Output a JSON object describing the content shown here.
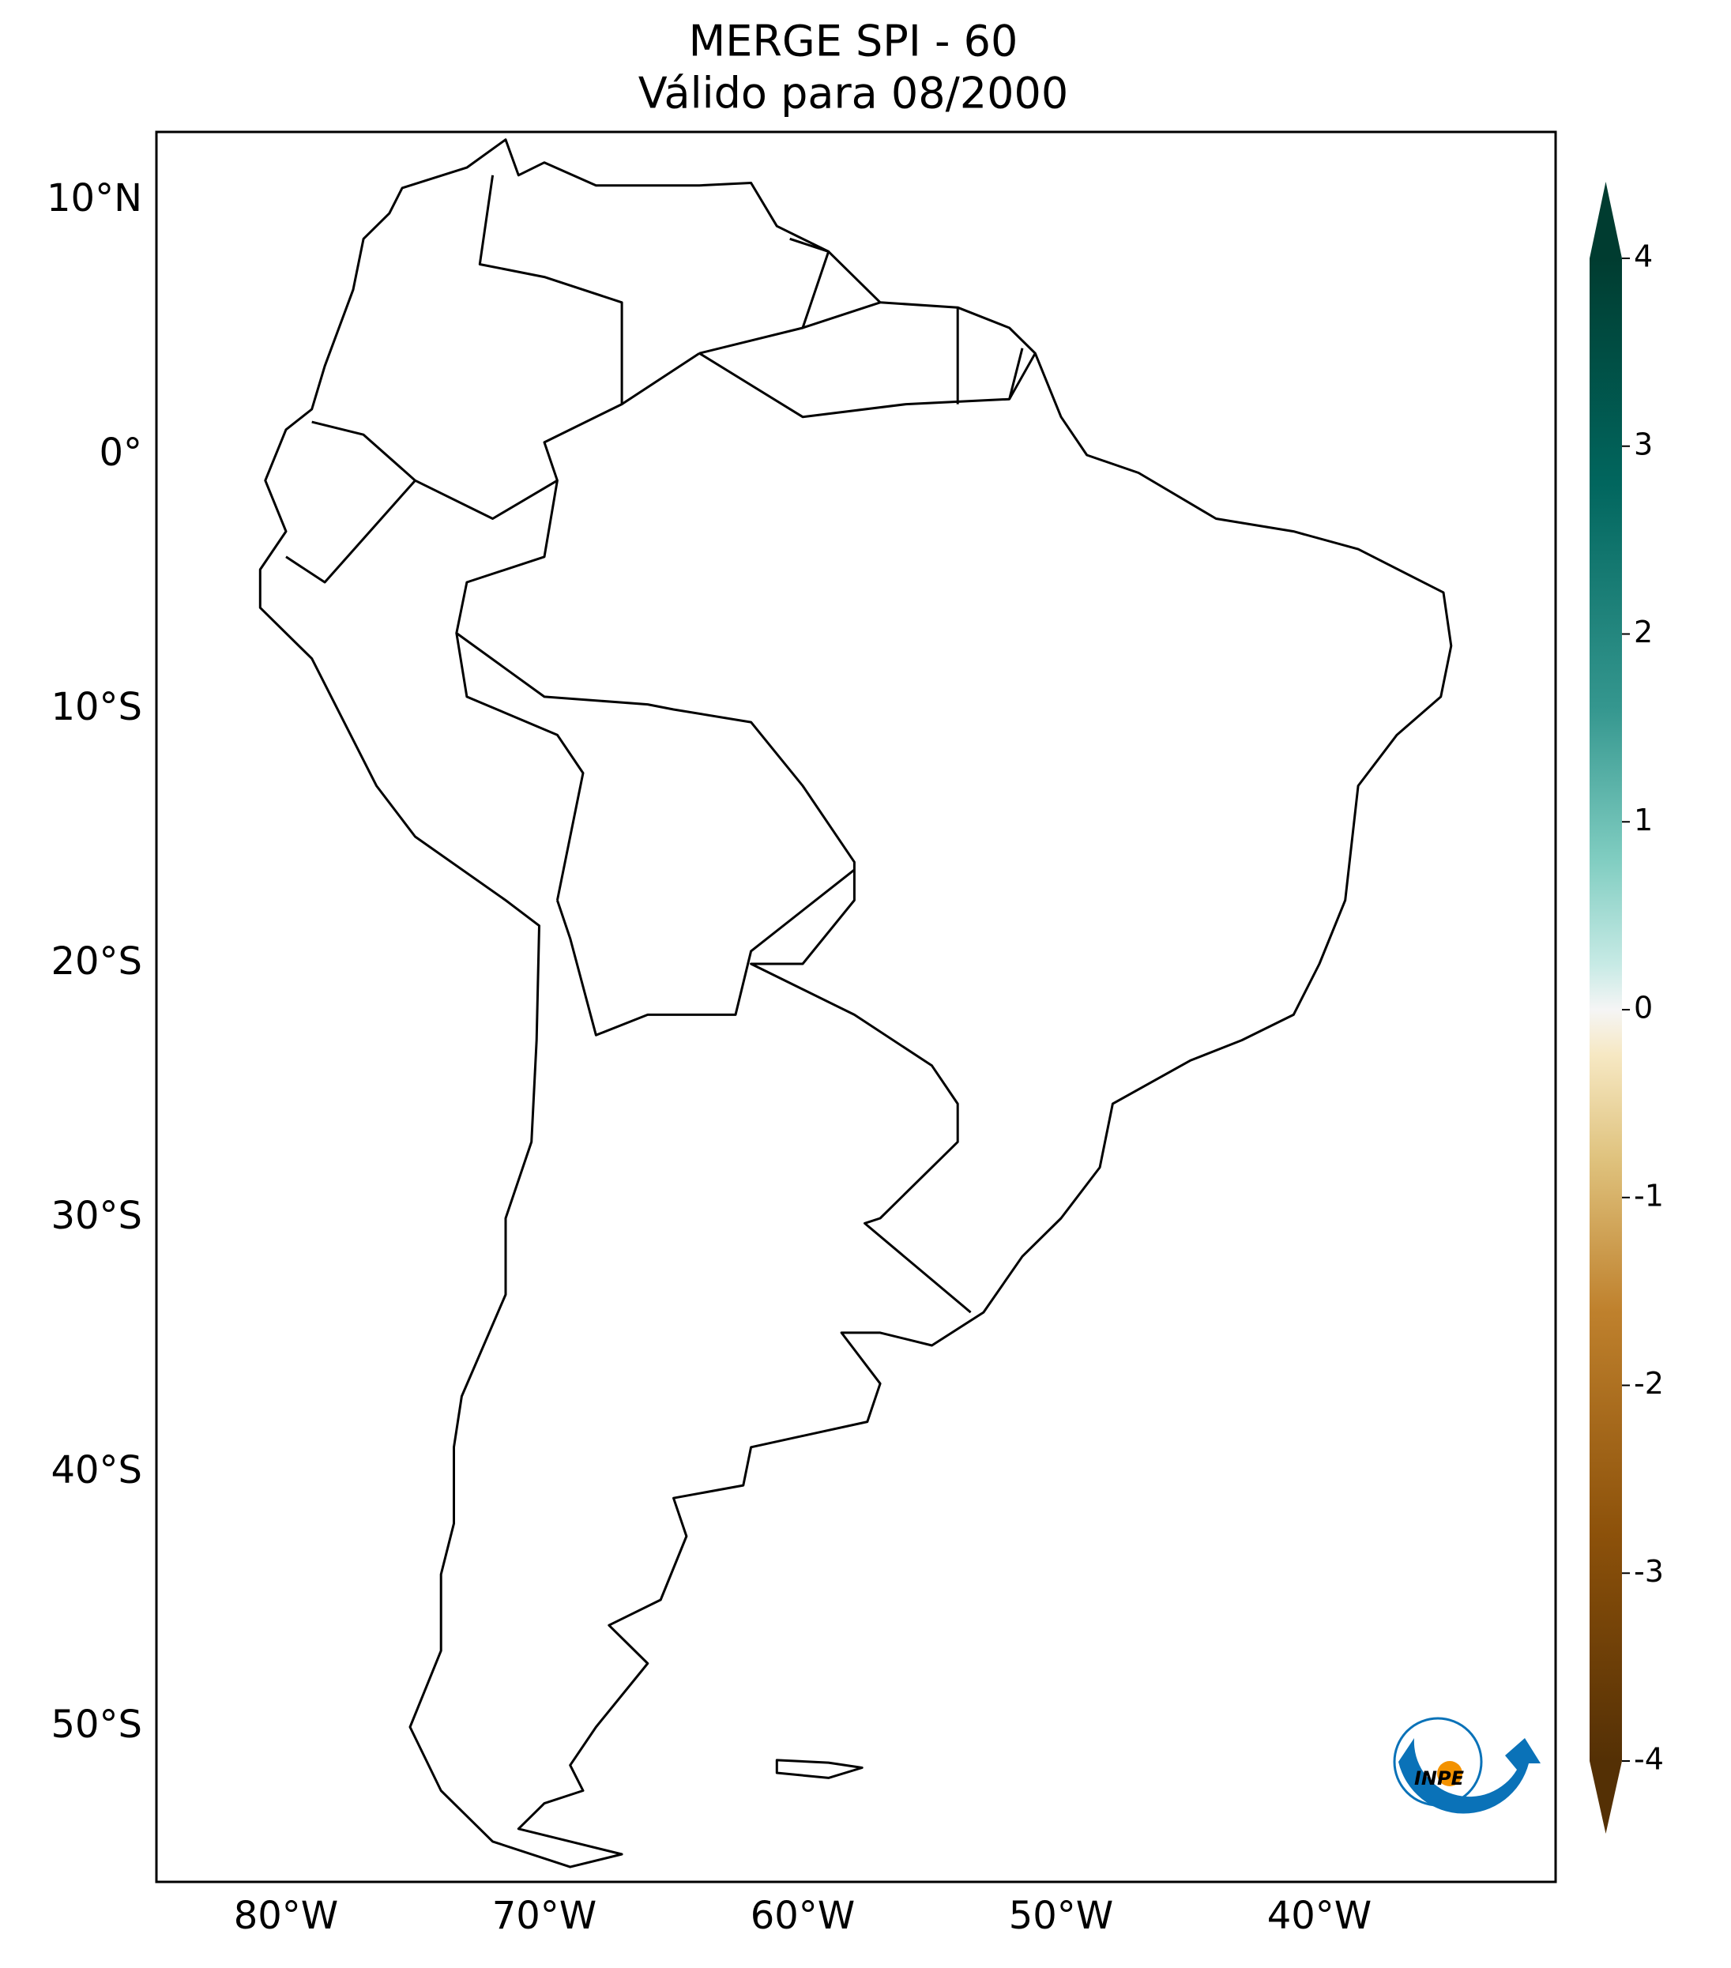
{
  "title": "MERGE   SPI - 60",
  "subtitle": "Válido para 08/2000",
  "map": {
    "lat_labels": [
      "10°N",
      "0°",
      "10°S",
      "20°S",
      "30°S",
      "40°S",
      "50°S"
    ],
    "lon_labels": [
      "80°W",
      "70°W",
      "60°W",
      "50°W",
      "40°W"
    ]
  },
  "colorbar": {
    "limits": [
      -4,
      4
    ],
    "ticks": [
      4,
      3,
      2,
      1,
      0,
      -1,
      -2,
      -3,
      -4
    ]
  },
  "logo": "INPE"
}
